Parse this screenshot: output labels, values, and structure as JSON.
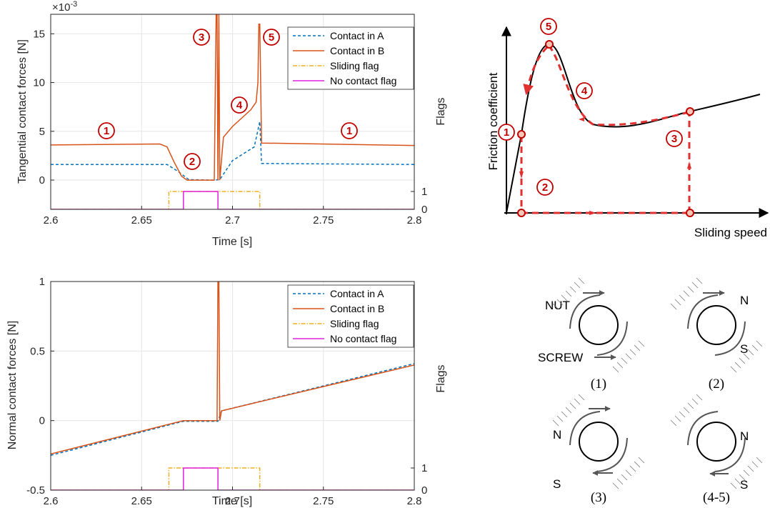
{
  "colors": {
    "contact_a": "#0072BD",
    "contact_b": "#D95319",
    "sliding": "#EDB120",
    "nocontact": "#E020E0",
    "marker_red": "#C00000",
    "friction_dash": "#E03030"
  },
  "chart_data": [
    {
      "type": "line",
      "ylabel": "Tangential contact forces [N]",
      "xlabel": "Time [s]",
      "y2label": "Flags",
      "exponent": "×10-3",
      "xlim": [
        2.6,
        2.8
      ],
      "ylim": [
        -3,
        17
      ],
      "xticks": [
        "2.6",
        "2.65",
        "2.7",
        "2.75",
        "2.8"
      ],
      "yticks": [
        "15",
        "10",
        "5",
        "0"
      ],
      "y2ticks": [
        "1",
        "0"
      ],
      "grid": true,
      "legend_position": "top-right",
      "legend": [
        "Contact in A",
        "Contact in B",
        "Sliding flag",
        "No contact flag"
      ],
      "annotations": [
        "1",
        "2",
        "3",
        "4",
        "5",
        "1"
      ],
      "series": [
        {
          "name": "Contact in A",
          "style": "dashed",
          "x": [
            2.6,
            2.664,
            2.67,
            2.676,
            2.69,
            2.693,
            2.7,
            2.712,
            2.715,
            2.716,
            2.8
          ],
          "y": [
            1.6,
            1.6,
            0.9,
            0.05,
            0.0,
            0.05,
            2.0,
            3.4,
            6.0,
            1.7,
            1.6
          ]
        },
        {
          "name": "Contact in B",
          "style": "solid",
          "x": [
            2.6,
            2.66,
            2.664,
            2.668,
            2.672,
            2.675,
            2.69,
            2.691,
            2.6915,
            2.692,
            2.6925,
            2.693,
            2.695,
            2.7,
            2.71,
            2.713,
            2.714,
            2.7145,
            2.715,
            2.716,
            2.8
          ],
          "y": [
            3.6,
            3.7,
            3.4,
            1.8,
            0.4,
            0.0,
            0.0,
            17.0,
            17.0,
            0.0,
            17.0,
            0.0,
            4.4,
            5.5,
            7.2,
            8.0,
            10.0,
            16.0,
            16.0,
            3.8,
            3.55
          ]
        },
        {
          "name": "Sliding flag",
          "style": "dashdot",
          "x": [
            2.6,
            2.665,
            2.665,
            2.715,
            2.715,
            2.8
          ],
          "y": [
            0,
            0,
            1,
            1,
            0,
            0
          ]
        },
        {
          "name": "No contact flag",
          "style": "solid",
          "x": [
            2.6,
            2.673,
            2.673,
            2.692,
            2.692,
            2.8
          ],
          "y": [
            0,
            0,
            1,
            1,
            0,
            0
          ]
        }
      ]
    },
    {
      "type": "line",
      "ylabel": "Normal contact forces [N]",
      "xlabel": "Time [s]",
      "y2label": "Flags",
      "xlim": [
        2.6,
        2.8
      ],
      "ylim": [
        -0.5,
        1
      ],
      "xticks": [
        "2.6",
        "2.65",
        "2.7",
        "2.75",
        "2.8"
      ],
      "yticks": [
        "1",
        "0.5",
        "0",
        "-0.5"
      ],
      "y2ticks": [
        "1",
        "0"
      ],
      "grid": true,
      "legend_position": "top-right",
      "legend": [
        "Contact in A",
        "Contact in B",
        "Sliding flag",
        "No contact flag"
      ],
      "series": [
        {
          "name": "Contact in A",
          "style": "dashed",
          "x": [
            2.6,
            2.673,
            2.692,
            2.694,
            2.8
          ],
          "y": [
            -0.25,
            -0.005,
            -0.005,
            0.07,
            0.41
          ]
        },
        {
          "name": "Contact in B",
          "style": "solid",
          "x": [
            2.6,
            2.673,
            2.6915,
            2.692,
            2.6925,
            2.693,
            2.694,
            2.8
          ],
          "y": [
            -0.24,
            0.0,
            0.0,
            1.0,
            1.0,
            0.0,
            0.07,
            0.4
          ]
        },
        {
          "name": "Sliding flag",
          "style": "dashdot",
          "x": [
            2.6,
            2.665,
            2.665,
            2.715,
            2.715,
            2.8
          ],
          "y": [
            0,
            0,
            1,
            1,
            0,
            0
          ]
        },
        {
          "name": "No contact flag",
          "style": "solid",
          "x": [
            2.6,
            2.673,
            2.673,
            2.692,
            2.692,
            2.8
          ],
          "y": [
            0,
            0,
            1,
            1,
            0,
            0
          ]
        }
      ]
    }
  ],
  "friction_diagram": {
    "ylabel": "Friction coefficient",
    "xlabel": "Sliding speed",
    "markers": [
      "1",
      "2",
      "3",
      "4",
      "5"
    ]
  },
  "screw_diagrams": {
    "labels": {
      "nut": "NUT",
      "screw": "SCREW",
      "n": "N",
      "s": "S"
    },
    "captions": [
      "(1)",
      "(2)",
      "(3)",
      "(4-5)"
    ]
  }
}
